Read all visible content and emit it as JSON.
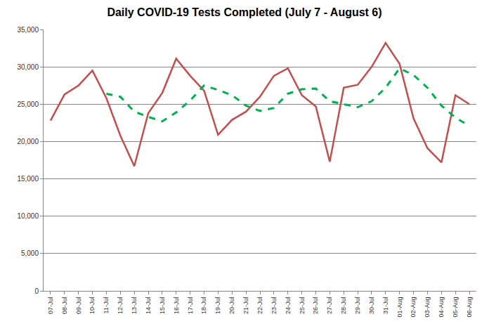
{
  "chart_data": {
    "type": "line",
    "title": "Daily COVID-19 Tests Completed (July 7 - August 6)",
    "categories": [
      "07-Jul",
      "08-Jul",
      "09-Jul",
      "10-Jul",
      "11-Jul",
      "12-Jul",
      "13-Jul",
      "14-Jul",
      "15-Jul",
      "16-Jul",
      "17-Jul",
      "18-Jul",
      "19-Jul",
      "20-Jul",
      "21-Jul",
      "22-Jul",
      "23-Jul",
      "24-Jul",
      "25-Jul",
      "26-Jul",
      "27-Jul",
      "28-Jul",
      "29-Jul",
      "30-Jul",
      "31-Jul",
      "01-Aug",
      "02-Aug",
      "03-Aug",
      "04-Aug",
      "05-Aug",
      "06-Aug"
    ],
    "series": [
      {
        "color": "#c0504d",
        "line_style": "solid",
        "values": [
          22800,
          26300,
          27500,
          29500,
          25800,
          20800,
          16700,
          23800,
          26500,
          31100,
          28800,
          26800,
          20900,
          22900,
          24000,
          26000,
          28800,
          29800,
          26200,
          24700,
          17300,
          27200,
          27600,
          30000,
          33200,
          30400,
          23100,
          19100,
          17200,
          26200,
          25000
        ]
      },
      {
        "color": "#00b050",
        "line_style": "dashed",
        "values": [
          null,
          null,
          null,
          null,
          26400,
          26000,
          24000,
          23300,
          22700,
          23900,
          25500,
          27500,
          26900,
          26200,
          24800,
          24100,
          24500,
          26400,
          27000,
          27100,
          25400,
          25000,
          24600,
          25400,
          27200,
          29800,
          28900,
          27200,
          24800,
          23200,
          22100
        ]
      }
    ],
    "ylim": [
      0,
      35000
    ],
    "yticks": [
      0,
      {
        "value": 5000,
        "label": "5,000"
      },
      {
        "value": 10000,
        "label": "10,000"
      },
      {
        "value": 15000,
        "label": "15,000"
      },
      {
        "value": 20000,
        "label": "20,000"
      },
      {
        "value": 25000,
        "label": "25,000"
      },
      {
        "value": 30000,
        "label": "30,000"
      },
      {
        "value": 35000,
        "label": "35,000"
      }
    ],
    "grid": true
  }
}
